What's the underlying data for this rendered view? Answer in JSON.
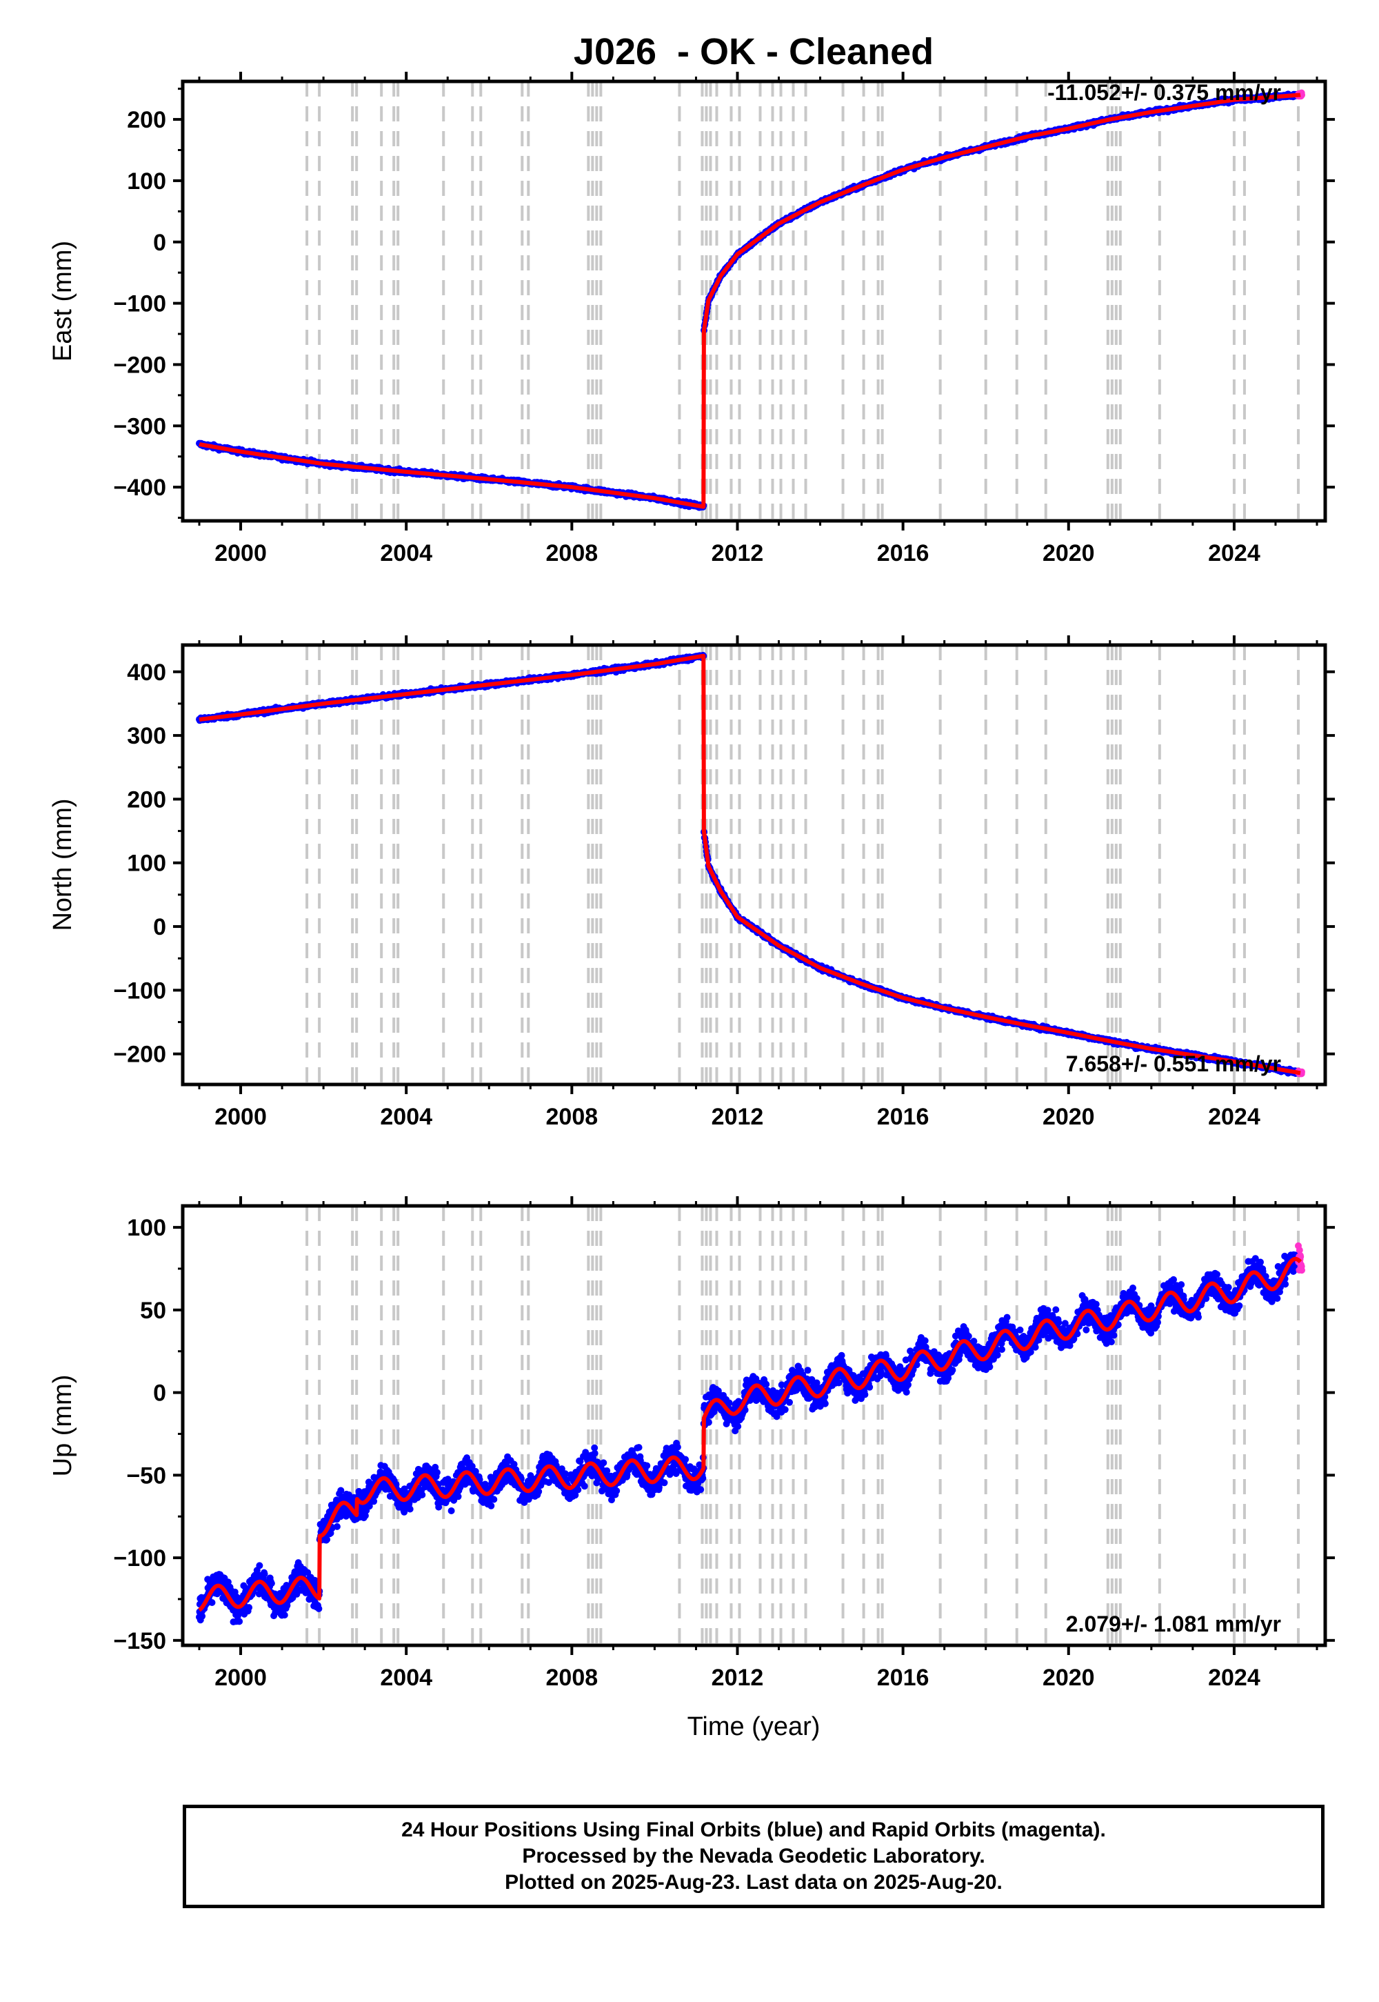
{
  "title": "J026  - OK - Cleaned",
  "xlabel": "Time (year)",
  "x_ticks": [
    "2000",
    "2004",
    "2008",
    "2012",
    "2016",
    "2020",
    "2024"
  ],
  "caption": {
    "line1": "24 Hour Positions Using Final Orbits (blue) and Rapid Orbits (magenta).",
    "line2": "Processed by the Nevada Geodetic Laboratory.",
    "line3": "Plotted on 2025-Aug-23. Last data on 2025-Aug-20."
  },
  "colors": {
    "final_orbits": "#0000ff",
    "rapid_orbits": "#ff33cc",
    "model": "#ff0000",
    "steps": "#c8c8c8"
  },
  "chart_data": [
    {
      "type": "scatter",
      "ylabel": "East (mm)",
      "rate_label": "-11.052+/- 0.375 mm/yr",
      "xlim": [
        1998.6,
        2026.2
      ],
      "ylim": [
        -455,
        262
      ],
      "y_ticks": [
        -400,
        -300,
        -200,
        -100,
        0,
        100,
        200
      ],
      "series": [
        {
          "name": "model",
          "x": [
            1999.0,
            2000.0,
            2002.0,
            2004.0,
            2006.0,
            2008.0,
            2010.0,
            2011.18,
            2011.19,
            2011.3,
            2011.6,
            2012.0,
            2013.0,
            2014.0,
            2015.0,
            2016.0,
            2017.0,
            2018.0,
            2019.0,
            2020.0,
            2021.0,
            2022.0,
            2023.0,
            2024.0,
            2025.6
          ],
          "y": [
            -330,
            -342,
            -362,
            -375,
            -387,
            -400,
            -418,
            -432,
            -145,
            -95,
            -55,
            -20,
            30,
            65,
            92,
            118,
            138,
            155,
            172,
            185,
            200,
            212,
            222,
            232,
            240
          ]
        }
      ]
    },
    {
      "type": "scatter",
      "ylabel": "North (mm)",
      "rate_label": "7.658+/- 0.551 mm/yr",
      "xlim": [
        1998.6,
        2026.2
      ],
      "ylim": [
        -248,
        442
      ],
      "y_ticks": [
        -200,
        -100,
        0,
        100,
        200,
        300,
        400
      ],
      "series": [
        {
          "name": "model",
          "x": [
            1999.0,
            2000.0,
            2002.0,
            2004.0,
            2006.0,
            2008.0,
            2010.0,
            2011.18,
            2011.19,
            2011.3,
            2011.6,
            2012.0,
            2013.0,
            2014.0,
            2015.0,
            2016.0,
            2017.0,
            2018.0,
            2019.0,
            2020.0,
            2021.0,
            2022.0,
            2023.0,
            2024.0,
            2025.6
          ],
          "y": [
            325,
            333,
            350,
            365,
            380,
            395,
            412,
            425,
            150,
            95,
            55,
            15,
            -30,
            -65,
            -90,
            -112,
            -128,
            -142,
            -155,
            -167,
            -180,
            -192,
            -202,
            -212,
            -230
          ]
        }
      ]
    },
    {
      "type": "scatter",
      "ylabel": "Up (mm)",
      "rate_label": "2.079+/- 1.081 mm/yr",
      "xlim": [
        1998.6,
        2026.2
      ],
      "ylim": [
        -153,
        113
      ],
      "y_ticks": [
        -150,
        -100,
        -50,
        0,
        50,
        100
      ],
      "series": [
        {
          "name": "model",
          "x": [
            1999.0,
            2001.9,
            2001.91,
            2002.8,
            2002.81,
            2011.18,
            2011.19,
            2012.0,
            2016.0,
            2020.0,
            2024.0,
            2025.6
          ],
          "y": [
            -125,
            -118,
            -80,
            -70,
            -60,
            -45,
            -15,
            -5,
            15,
            40,
            62,
            75
          ]
        }
      ]
    }
  ],
  "step_years": [
    2001.6,
    2001.9,
    2002.7,
    2002.8,
    2003.4,
    2003.7,
    2003.8,
    2004.9,
    2005.6,
    2005.8,
    2006.8,
    2006.95,
    2008.4,
    2008.5,
    2008.6,
    2008.7,
    2010.6,
    2011.15,
    2011.25,
    2011.35,
    2011.5,
    2011.85,
    2012.05,
    2012.55,
    2012.85,
    2013.05,
    2013.35,
    2013.65,
    2014.55,
    2015.05,
    2015.4,
    2015.5,
    2016.9,
    2018.0,
    2018.75,
    2019.45,
    2020.95,
    2021.05,
    2021.15,
    2021.25,
    2022.2,
    2024.0,
    2024.25,
    2025.55
  ]
}
